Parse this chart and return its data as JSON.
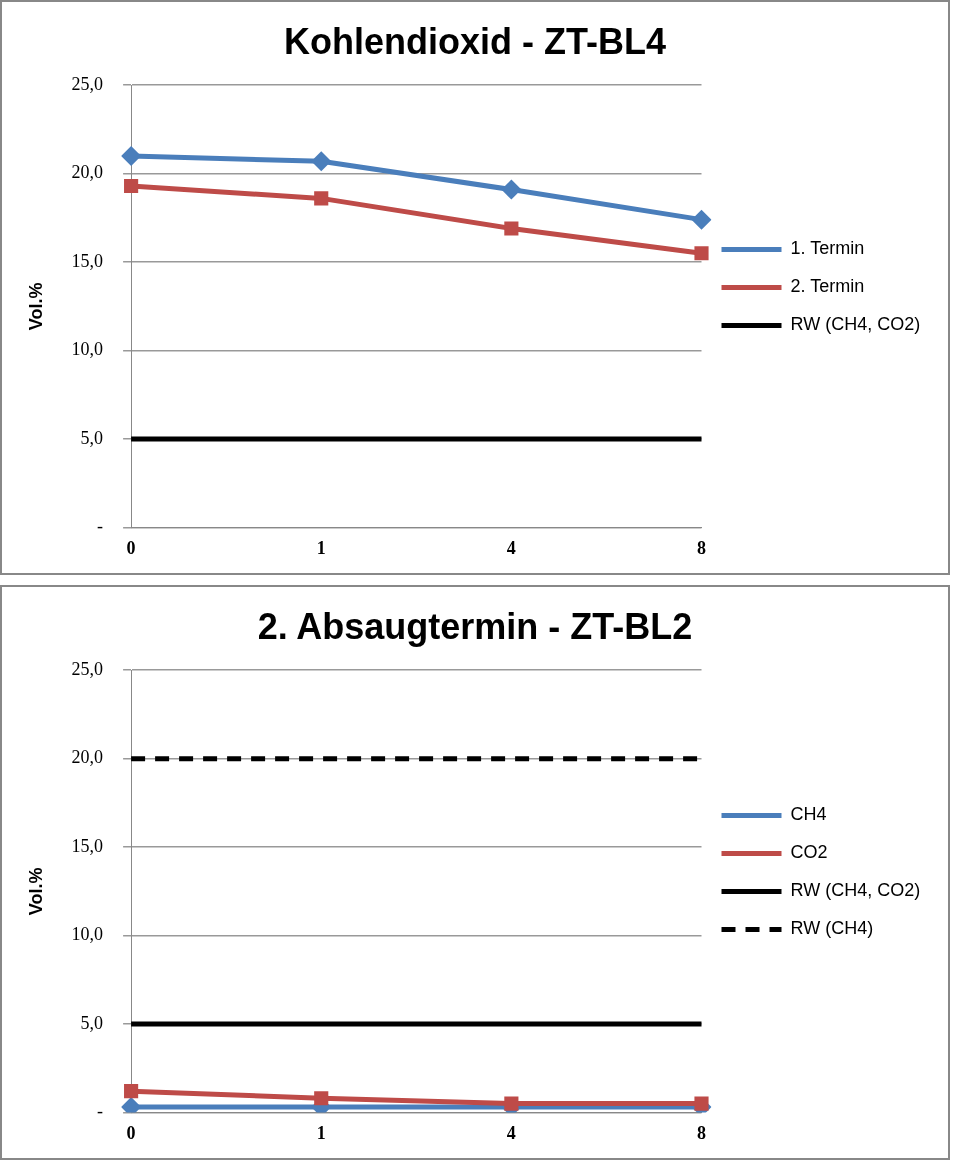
{
  "chart_data": [
    {
      "type": "line",
      "title": "Kohlendioxid - ZT-BL4",
      "ylabel": "Vol.%",
      "categories": [
        "0",
        "1",
        "4",
        "8"
      ],
      "ylim": [
        0,
        25
      ],
      "yticks": [
        {
          "value": 0,
          "label": "-"
        },
        {
          "value": 5,
          "label": "5,0"
        },
        {
          "value": 10,
          "label": "10,0"
        },
        {
          "value": 15,
          "label": "15,0"
        },
        {
          "value": 20,
          "label": "20,0"
        },
        {
          "value": 25,
          "label": "25,0"
        }
      ],
      "grid": "y",
      "legend": "right",
      "series": [
        {
          "name": "1. Termin",
          "color": "#4a7ebb",
          "marker": "diamond",
          "values": [
            21.0,
            20.7,
            19.1,
            17.4
          ]
        },
        {
          "name": "2. Termin",
          "color": "#be4b48",
          "marker": "square",
          "values": [
            19.3,
            18.6,
            16.9,
            15.5
          ]
        },
        {
          "name": "RW (CH4, CO2)",
          "color": "#000000",
          "marker": "none",
          "line_style": "solid",
          "values": [
            5,
            5,
            5,
            5
          ]
        }
      ]
    },
    {
      "type": "line",
      "title": "2. Absaugtermin - ZT-BL2",
      "ylabel": "Vol.%",
      "categories": [
        "0",
        "1",
        "4",
        "8"
      ],
      "ylim": [
        0,
        25
      ],
      "yticks": [
        {
          "value": 0,
          "label": "-"
        },
        {
          "value": 5,
          "label": "5,0"
        },
        {
          "value": 10,
          "label": "10,0"
        },
        {
          "value": 15,
          "label": "15,0"
        },
        {
          "value": 20,
          "label": "20,0"
        },
        {
          "value": 25,
          "label": "25,0"
        }
      ],
      "grid": "y",
      "legend": "right",
      "series": [
        {
          "name": "CH4",
          "color": "#4a7ebb",
          "marker": "diamond",
          "values": [
            0.3,
            0.3,
            0.3,
            0.3
          ]
        },
        {
          "name": "CO2",
          "color": "#be4b48",
          "marker": "square",
          "values": [
            1.2,
            0.8,
            0.5,
            0.5
          ]
        },
        {
          "name": "RW (CH4, CO2)",
          "color": "#000000",
          "marker": "none",
          "line_style": "solid",
          "values": [
            5,
            5,
            5,
            5
          ]
        },
        {
          "name": "RW (CH4)",
          "color": "#000000",
          "marker": "none",
          "line_style": "dashed",
          "values": [
            20,
            20,
            20,
            20
          ]
        }
      ]
    }
  ]
}
